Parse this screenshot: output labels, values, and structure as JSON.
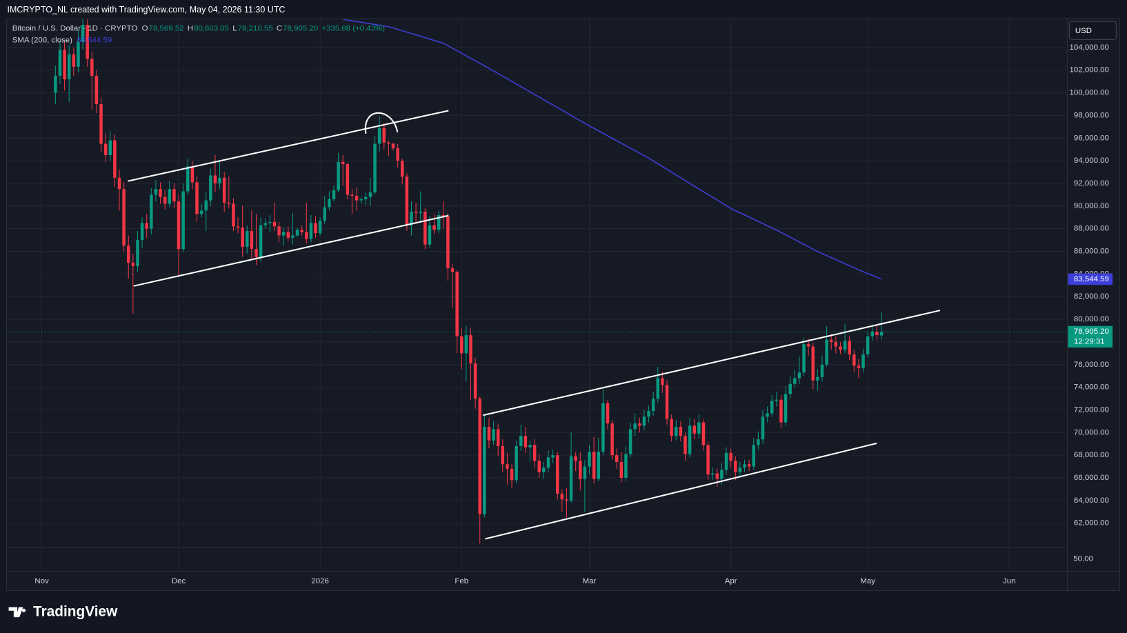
{
  "header": {
    "credit": "IMCRYPTO_NL created with TradingView.com, May 04, 2026 11:30 UTC",
    "currency": "USD",
    "brand": "TradingView"
  },
  "chart_data": {
    "type": "candlestick",
    "title": "Bitcoin / U.S. Dollar · 1D · CRYPTO",
    "ohlc_labels": [
      "O",
      "H",
      "L",
      "C"
    ],
    "ohlc_values": [
      "78,569.52",
      "80,603.05",
      "78,210.55",
      "78,905.20"
    ],
    "change": "+335.68 (+0.43%)",
    "up_color": "#089981",
    "down_color": "#f23645",
    "x": [
      3,
      4,
      5,
      6,
      7,
      8,
      9,
      10,
      11,
      12,
      13,
      14,
      15,
      16,
      17,
      18,
      19,
      20,
      21,
      22,
      23,
      24,
      25,
      26,
      27,
      28,
      29,
      30,
      31,
      32,
      33,
      34,
      35,
      36,
      37,
      38,
      39,
      40,
      41,
      42,
      43,
      44,
      45,
      46,
      47,
      48,
      49,
      50,
      51,
      52,
      53,
      54,
      55,
      56,
      57,
      58,
      59,
      60,
      61,
      62,
      63,
      64,
      65,
      66,
      67,
      68,
      69,
      70,
      71,
      72,
      73,
      74,
      75,
      76,
      77,
      78,
      79,
      80,
      81,
      82,
      83,
      84,
      85,
      86,
      87,
      88,
      89,
      90,
      91,
      92,
      93,
      94,
      95,
      96,
      97,
      98,
      99,
      100,
      101,
      102,
      103,
      104,
      105,
      106,
      107,
      108,
      109,
      110,
      111,
      112,
      113,
      114,
      115,
      116,
      117,
      118,
      119,
      120,
      121,
      122,
      123,
      124,
      125,
      126,
      127,
      128,
      129,
      130,
      131,
      132,
      133,
      134,
      135,
      136,
      137,
      138,
      139,
      140,
      141,
      142,
      143,
      144,
      145,
      146,
      147,
      148,
      149,
      150,
      151,
      152,
      153,
      154,
      155,
      156,
      157,
      158,
      159,
      160,
      161,
      162,
      163,
      164,
      165,
      166,
      167,
      168,
      169,
      170,
      171,
      172,
      173,
      174,
      175,
      176,
      177,
      178,
      179,
      180,
      181,
      182,
      183,
      184
    ],
    "open": [
      100000,
      101500,
      103800,
      101200,
      103400,
      102300,
      104500,
      106000,
      103000,
      101500,
      99000,
      95500,
      94500,
      95800,
      92500,
      91500,
      86500,
      85000,
      84700,
      87000,
      88500,
      88000,
      91000,
      91500,
      90800,
      90200,
      91500,
      90400,
      86200,
      91300,
      93500,
      92100,
      89300,
      89600,
      90500,
      92700,
      92000,
      92500,
      90300,
      90200,
      88200,
      88100,
      86400,
      87800,
      86200,
      85500,
      88300,
      88500,
      88600,
      88200,
      87400,
      87700,
      87200,
      87400,
      87900,
      87700,
      87100,
      88500,
      87600,
      88700,
      89900,
      90600,
      91400,
      93900,
      93700,
      91000,
      90900,
      90500,
      90600,
      90800,
      91200,
      95500,
      96900,
      95600,
      95500,
      95100,
      94000,
      92600,
      88300,
      89500,
      89400,
      89500,
      86600,
      88300,
      87900,
      89200,
      89100,
      84500,
      84200,
      78500,
      77000,
      78600,
      76100,
      73000,
      62800,
      70500,
      69300,
      70300,
      68800,
      67200,
      66800,
      65800,
      68800,
      69700,
      68700,
      68900,
      67500,
      66500,
      66900,
      67800,
      68000,
      64600,
      64100,
      64000,
      67900,
      67500,
      65900,
      67000,
      68300,
      65900,
      68300,
      72600,
      70800,
      68000,
      67400,
      66000,
      68100,
      70300,
      70800,
      70600,
      71400,
      71900,
      73000,
      74800,
      74200,
      71200,
      69700,
      70500,
      69700,
      68100,
      70600,
      69900,
      70900,
      68900,
      66300,
      66400,
      65900,
      66700,
      68200,
      67500,
      66500,
      66900,
      67200,
      67000,
      68900,
      69400,
      71400,
      71700,
      72800,
      72900,
      70900,
      73400,
      74300,
      74800,
      75300,
      77800,
      77600,
      74600,
      74900,
      76000,
      78200,
      78000,
      77600,
      77300,
      78100,
      76900,
      75900,
      75700,
      76900,
      78500,
      78900,
      78569.52
    ],
    "high": [
      102400,
      104600,
      104500,
      104200,
      104000,
      105500,
      107000,
      106500,
      103600,
      102000,
      99600,
      96400,
      96600,
      96300,
      93200,
      92100,
      87400,
      85800,
      87800,
      89000,
      89300,
      91600,
      92300,
      92100,
      91400,
      92200,
      92000,
      91000,
      92000,
      94200,
      94000,
      92600,
      90200,
      91200,
      93300,
      94500,
      94000,
      93000,
      92600,
      90700,
      89000,
      90000,
      88300,
      89600,
      89300,
      89000,
      88900,
      89200,
      90300,
      88600,
      88100,
      88200,
      89400,
      88100,
      88300,
      90300,
      89200,
      89100,
      89000,
      90900,
      91300,
      91800,
      94700,
      94500,
      93800,
      91500,
      91600,
      90800,
      91200,
      92500,
      96200,
      97900,
      97300,
      95800,
      95600,
      95500,
      94200,
      92900,
      90400,
      90300,
      91300,
      89800,
      89100,
      89300,
      89600,
      90400,
      89400,
      84900,
      84300,
      79200,
      79400,
      79200,
      76600,
      73200,
      71600,
      71300,
      71000,
      70800,
      69400,
      68200,
      67200,
      69300,
      70700,
      70500,
      69300,
      69400,
      68100,
      67400,
      68400,
      68500,
      68300,
      65000,
      65100,
      70000,
      68300,
      68300,
      67600,
      68900,
      69600,
      69500,
      73900,
      72900,
      71100,
      68600,
      68300,
      68800,
      70900,
      71700,
      71300,
      72000,
      72400,
      73600,
      75800,
      75400,
      74600,
      71600,
      71100,
      71000,
      70000,
      71300,
      71200,
      71600,
      71200,
      69200,
      66900,
      66800,
      67300,
      68700,
      68600,
      67900,
      67400,
      67600,
      67600,
      69500,
      70100,
      72000,
      72300,
      73300,
      73600,
      73300,
      74100,
      75000,
      75500,
      76700,
      78400,
      78300,
      77900,
      75600,
      76800,
      79400,
      78700,
      78500,
      78000,
      79600,
      78500,
      77300,
      76500,
      77400,
      78900,
      79300,
      79400,
      80603.05
    ],
    "low": [
      99000,
      100800,
      100200,
      99200,
      101500,
      101800,
      103800,
      102300,
      98500,
      98200,
      94800,
      93900,
      94000,
      91700,
      89600,
      86000,
      83600,
      80500,
      84200,
      86300,
      87200,
      87500,
      90400,
      90200,
      89700,
      89900,
      89800,
      83800,
      85900,
      91000,
      91500,
      88600,
      89000,
      87800,
      90000,
      91200,
      91500,
      89500,
      89800,
      87800,
      87600,
      85500,
      85800,
      85300,
      84800,
      85100,
      88000,
      87700,
      87800,
      86800,
      86500,
      86900,
      86600,
      87300,
      87400,
      86700,
      86800,
      87200,
      87400,
      88400,
      89600,
      90400,
      91200,
      91800,
      90600,
      89300,
      89600,
      90200,
      90100,
      90000,
      91000,
      94800,
      95000,
      94400,
      94900,
      93400,
      91900,
      87800,
      87400,
      88400,
      88600,
      86200,
      86300,
      87500,
      87600,
      88000,
      83400,
      81000,
      77000,
      75600,
      74500,
      72900,
      72100,
      60200,
      62500,
      68600,
      68900,
      67900,
      66500,
      65400,
      65100,
      65500,
      68400,
      68200,
      67400,
      66900,
      66000,
      65900,
      66500,
      67300,
      64100,
      63000,
      62500,
      63800,
      66600,
      64900,
      63000,
      66300,
      65500,
      65700,
      68000,
      70300,
      67600,
      66800,
      65600,
      65700,
      67800,
      69700,
      70000,
      70200,
      70900,
      71500,
      72600,
      73500,
      70700,
      69200,
      69300,
      69200,
      67500,
      67800,
      69400,
      69500,
      68400,
      65800,
      65800,
      65200,
      65400,
      66300,
      66900,
      65800,
      66100,
      66500,
      66600,
      66700,
      68500,
      69000,
      70900,
      71400,
      72300,
      70400,
      70600,
      73000,
      74000,
      74300,
      75000,
      76800,
      73800,
      73700,
      74500,
      75800,
      77300,
      77000,
      76900,
      77000,
      76400,
      75300,
      74800,
      75300,
      76600,
      78100,
      78200,
      78210.55
    ],
    "close": [
      101500,
      103800,
      101200,
      103400,
      102300,
      104500,
      106000,
      103000,
      101500,
      99000,
      95500,
      94500,
      95800,
      92500,
      91500,
      86500,
      85000,
      84700,
      87000,
      88500,
      88000,
      91000,
      91500,
      90800,
      90200,
      91500,
      90400,
      86200,
      91300,
      93500,
      92100,
      89300,
      89600,
      90500,
      92700,
      92000,
      92500,
      90300,
      90200,
      88200,
      88100,
      86400,
      87800,
      86200,
      85500,
      88300,
      88500,
      88600,
      88200,
      87400,
      87700,
      87200,
      87400,
      87900,
      87700,
      87100,
      88500,
      87600,
      88700,
      89900,
      90600,
      91400,
      93900,
      93700,
      91000,
      90900,
      90500,
      90600,
      90800,
      91200,
      95500,
      96900,
      95600,
      95500,
      95100,
      94000,
      92600,
      88300,
      89500,
      89400,
      89500,
      86600,
      88300,
      87900,
      89200,
      89100,
      84500,
      84200,
      78500,
      77000,
      78600,
      76100,
      73000,
      62800,
      70500,
      69300,
      70300,
      68800,
      67200,
      66800,
      65800,
      68800,
      69700,
      68700,
      68900,
      67500,
      66500,
      66900,
      67800,
      68000,
      64600,
      64100,
      64000,
      67900,
      67500,
      65900,
      67000,
      68300,
      65900,
      68300,
      72600,
      70800,
      68000,
      67400,
      66000,
      68100,
      70300,
      70800,
      70600,
      71400,
      71900,
      73000,
      74800,
      74200,
      71200,
      69700,
      70500,
      69700,
      68100,
      70600,
      69900,
      70900,
      68900,
      66300,
      66400,
      65900,
      66700,
      68200,
      67500,
      66500,
      66900,
      67200,
      67000,
      68900,
      69400,
      71400,
      71700,
      72800,
      72900,
      70900,
      73400,
      74300,
      74800,
      75300,
      77800,
      77600,
      74600,
      74900,
      76000,
      78200,
      78000,
      77600,
      77300,
      78100,
      76900,
      75900,
      75700,
      76900,
      78500,
      78900,
      78600,
      78905.2
    ],
    "overlays": [
      {
        "name": "SMA (200, close)",
        "color": "#3d3fd8",
        "x": [
          66,
          76,
          88,
          98,
          109,
          120,
          133,
          142,
          151,
          161,
          170,
          180,
          184
        ],
        "values": [
          106480,
          105840,
          104380,
          102160,
          99620,
          97080,
          94230,
          92000,
          89790,
          87880,
          85980,
          84200,
          83544.59
        ],
        "value_label": "83,544.59"
      }
    ],
    "last_price": {
      "value": 78905.2,
      "label": "78,905.20",
      "countdown": "12:29:31"
    },
    "lower_pane_label": "50.00",
    "ylim": [
      59850,
      106480
    ],
    "yticks": [
      {
        "value": 62000,
        "label": "62,000.00"
      },
      {
        "value": 64000,
        "label": "64,000.00"
      },
      {
        "value": 66000,
        "label": "66,000.00"
      },
      {
        "value": 68000,
        "label": "68,000.00"
      },
      {
        "value": 70000,
        "label": "70,000.00"
      },
      {
        "value": 72000,
        "label": "72,000.00"
      },
      {
        "value": 74000,
        "label": "74,000.00"
      },
      {
        "value": 76000,
        "label": "76,000.00"
      },
      {
        "value": 78000,
        "label": "78,000.00"
      },
      {
        "value": 80000,
        "label": "80,000.00"
      },
      {
        "value": 82000,
        "label": "82,000.00"
      },
      {
        "value": 84000,
        "label": "84,000.00"
      },
      {
        "value": 86000,
        "label": "86,000.00"
      },
      {
        "value": 88000,
        "label": "88,000.00"
      },
      {
        "value": 90000,
        "label": "90,000.00"
      },
      {
        "value": 92000,
        "label": "92,000.00"
      },
      {
        "value": 94000,
        "label": "94,000.00"
      },
      {
        "value": 96000,
        "label": "96,000.00"
      },
      {
        "value": 98000,
        "label": "98,000.00"
      },
      {
        "value": 100000,
        "label": "100,000.00"
      },
      {
        "value": 102000,
        "label": "102,000.00"
      },
      {
        "value": 104000,
        "label": "104,000.00"
      }
    ],
    "xlim": [
      -7.56,
      224.72
    ],
    "xticks": [
      {
        "value": 0,
        "label": "Nov"
      },
      {
        "value": 30,
        "label": "Dec"
      },
      {
        "value": 61,
        "label": "2026"
      },
      {
        "value": 92,
        "label": "Feb"
      },
      {
        "value": 120,
        "label": "Mar"
      },
      {
        "value": 151,
        "label": "Apr"
      },
      {
        "value": 181,
        "label": "May"
      },
      {
        "value": 212,
        "label": "Jun"
      }
    ],
    "grid": true
  }
}
